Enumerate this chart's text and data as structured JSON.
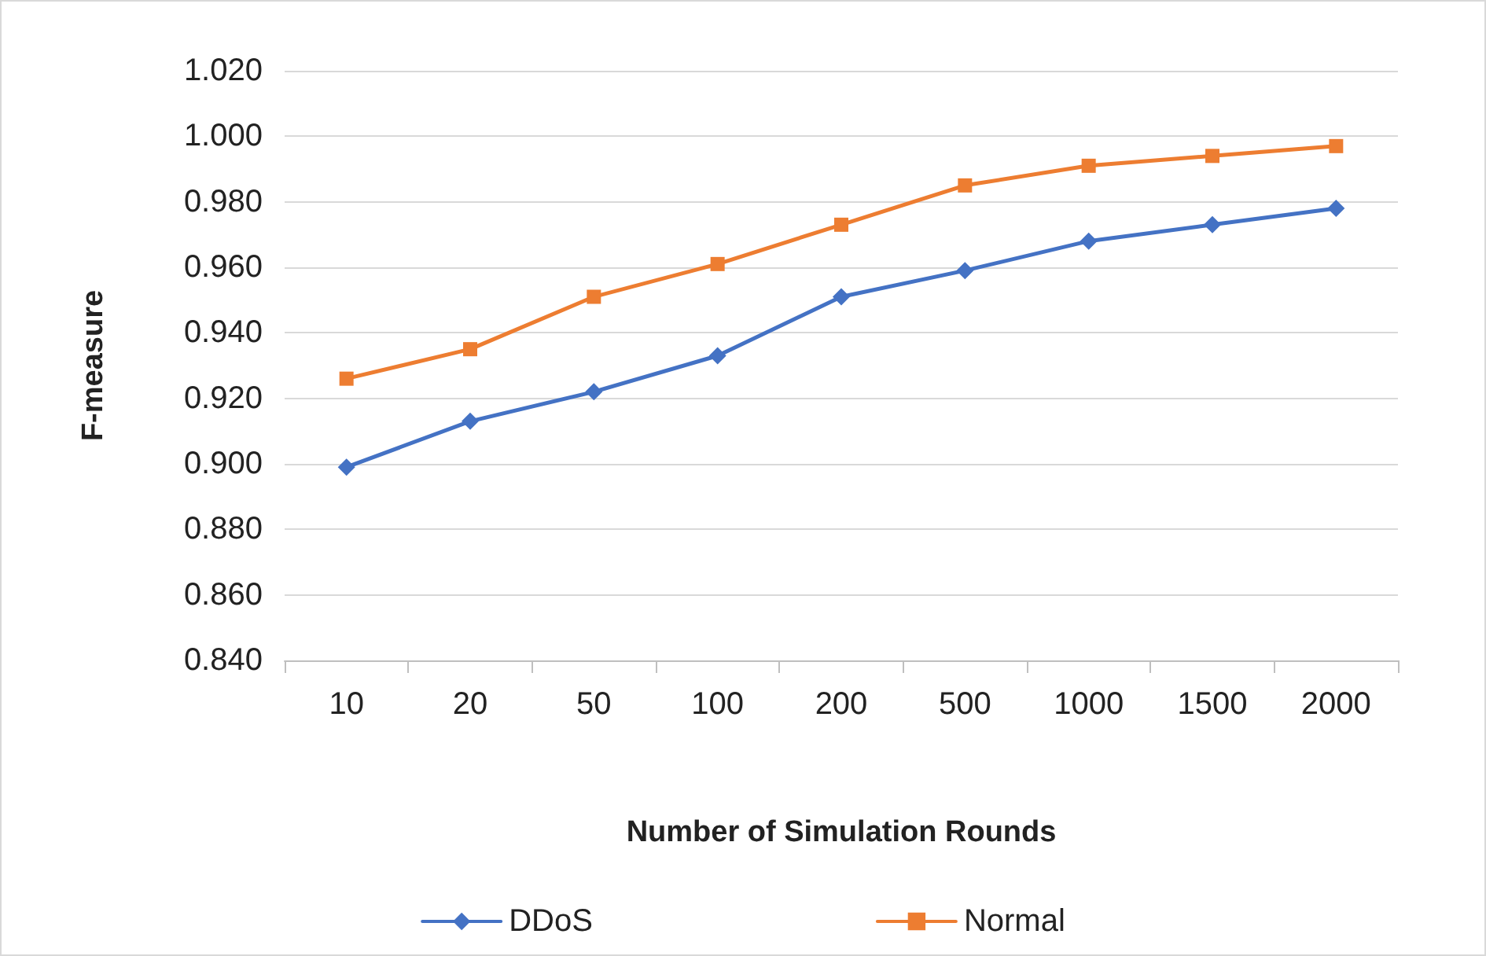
{
  "chart_data": {
    "type": "line",
    "xlabel": "Number of Simulation Rounds",
    "ylabel": "F-measure",
    "categories": [
      "10",
      "20",
      "50",
      "100",
      "200",
      "500",
      "1000",
      "1500",
      "2000"
    ],
    "series": [
      {
        "name": "DDoS",
        "color": "#4472c4",
        "marker": "diamond",
        "values": [
          0.899,
          0.913,
          0.922,
          0.933,
          0.951,
          0.959,
          0.968,
          0.973,
          0.978
        ]
      },
      {
        "name": "Normal",
        "color": "#ed7d31",
        "marker": "square",
        "values": [
          0.926,
          0.935,
          0.951,
          0.961,
          0.973,
          0.985,
          0.991,
          0.994,
          0.997
        ]
      }
    ],
    "ylim": [
      0.84,
      1.02
    ],
    "yticks": [
      {
        "value": 0.84,
        "label": "0.840"
      },
      {
        "value": 0.86,
        "label": "0.860"
      },
      {
        "value": 0.88,
        "label": "0.880"
      },
      {
        "value": 0.9,
        "label": "0.900"
      },
      {
        "value": 0.92,
        "label": "0.920"
      },
      {
        "value": 0.94,
        "label": "0.940"
      },
      {
        "value": 0.96,
        "label": "0.960"
      },
      {
        "value": 0.98,
        "label": "0.980"
      },
      {
        "value": 1.0,
        "label": "1.000"
      },
      {
        "value": 1.02,
        "label": "1.020"
      }
    ],
    "grid": "y",
    "legend": "bottom",
    "line_style": "solid"
  }
}
